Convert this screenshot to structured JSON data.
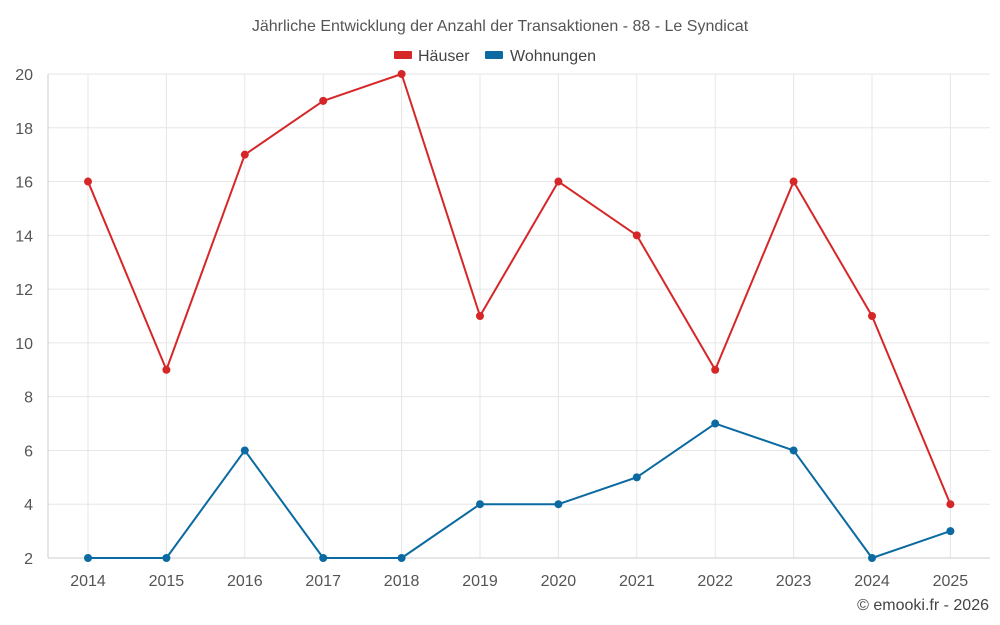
{
  "chart_data": {
    "type": "line",
    "title": "Jährliche Entwicklung der Anzahl der Transaktionen - 88 - Le Syndicat",
    "categories": [
      "2014",
      "2015",
      "2016",
      "2017",
      "2018",
      "2019",
      "2020",
      "2021",
      "2022",
      "2023",
      "2024",
      "2025"
    ],
    "series": [
      {
        "name": "Häuser",
        "color": "#d62728",
        "values": [
          16,
          9,
          17,
          19,
          20,
          11,
          16,
          14,
          9,
          16,
          11,
          4
        ]
      },
      {
        "name": "Wohnungen",
        "color": "#0a6aa1",
        "values": [
          2,
          2,
          6,
          2,
          2,
          4,
          4,
          5,
          7,
          6,
          2,
          3
        ]
      }
    ],
    "xlabel": "",
    "ylabel": "",
    "ylim": [
      2,
      20
    ],
    "yticks": [
      2,
      4,
      6,
      8,
      10,
      12,
      14,
      16,
      18,
      20
    ],
    "grid": true,
    "legend_position": "top-center"
  },
  "credit": "© emooki.fr - 2026"
}
